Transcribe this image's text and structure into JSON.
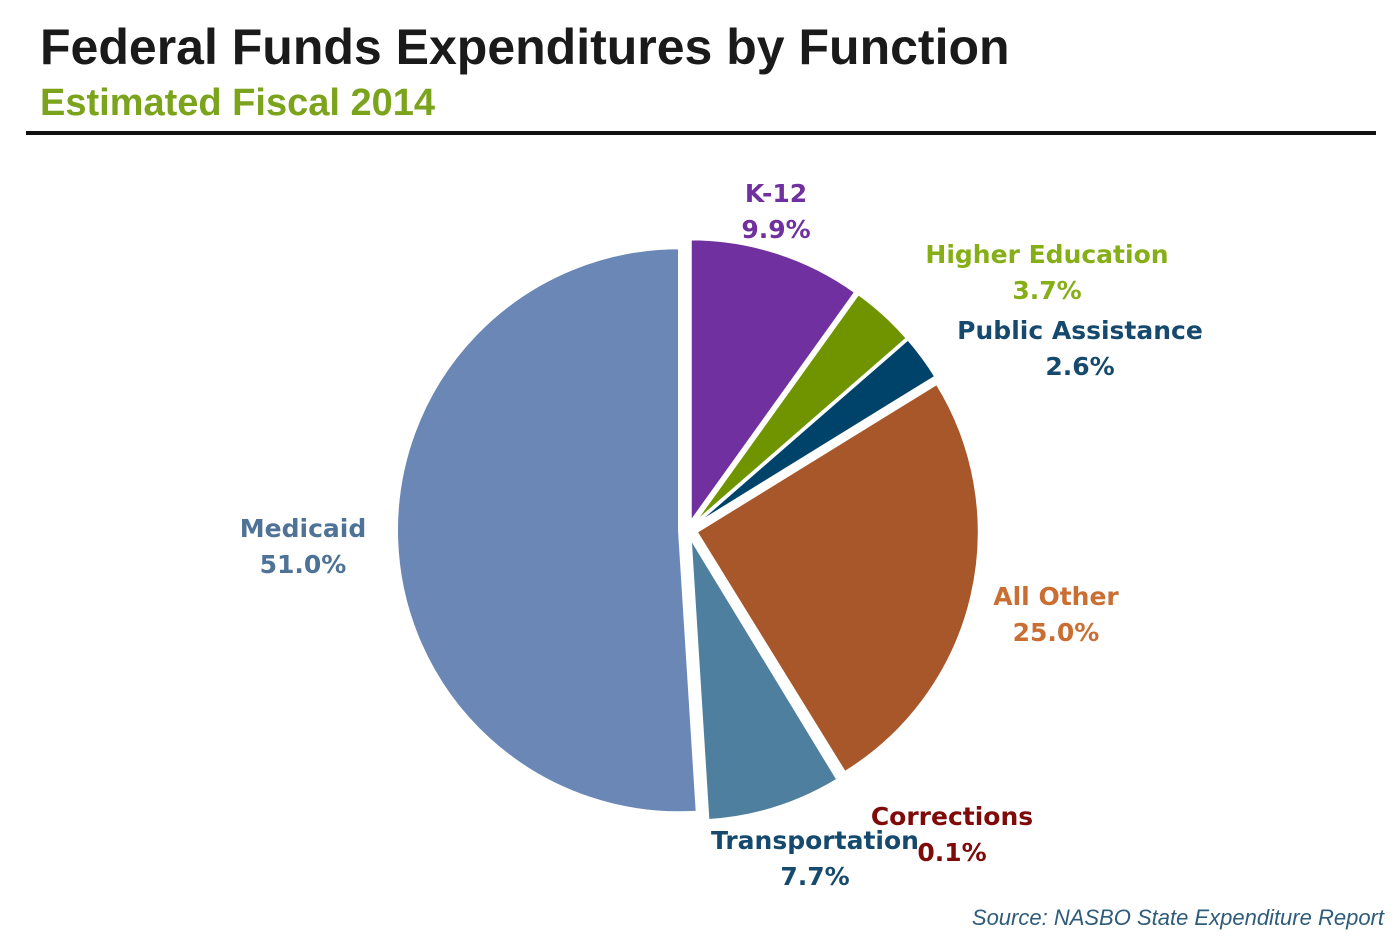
{
  "header": {
    "title": "Federal Funds Expenditures by Function",
    "subtitle": "Estimated Fiscal 2014"
  },
  "source": "Source: NASBO State Expenditure Report",
  "chart_data": {
    "type": "pie",
    "title": "Federal Funds Expenditures by Function",
    "subtitle": "Estimated Fiscal 2014",
    "slices": [
      {
        "name": "K-12",
        "value": 9.9,
        "label": "9.9%",
        "color": "#7030A0",
        "label_color": "#7030A0"
      },
      {
        "name": "Higher Education",
        "value": 3.7,
        "label": "3.7%",
        "color": "#6F9400",
        "label_color": "#86AE16"
      },
      {
        "name": "Public Assistance",
        "value": 2.6,
        "label": "2.6%",
        "color": "#00436A",
        "label_color": "#154A6E"
      },
      {
        "name": "All Other",
        "value": 25.0,
        "label": "25.0%",
        "color": "#A8572A",
        "label_color": "#C96F33"
      },
      {
        "name": "Corrections",
        "value": 0.1,
        "label": "0.1%",
        "color": "#8B1A1A",
        "label_color": "#7F0A0A"
      },
      {
        "name": "Transportation",
        "value": 7.7,
        "label": "7.7%",
        "color": "#4F7F9E",
        "label_color": "#154A6E"
      },
      {
        "name": "Medicaid",
        "value": 51.0,
        "label": "51.0%",
        "color": "#6A87B5",
        "label_color": "#4F7396"
      }
    ]
  }
}
